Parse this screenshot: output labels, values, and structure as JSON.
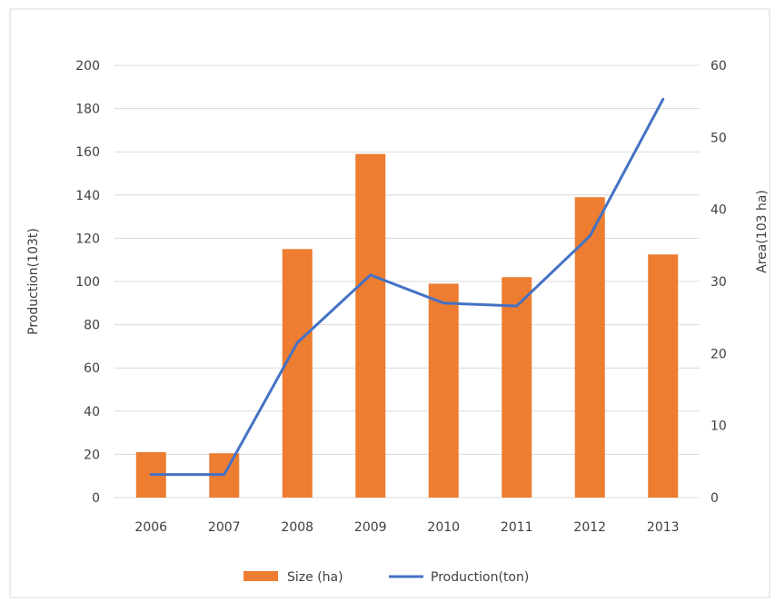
{
  "chart_data": {
    "type": "bar",
    "categories": [
      "2006",
      "2007",
      "2008",
      "2009",
      "2010",
      "2011",
      "2012",
      "2013"
    ],
    "series": [
      {
        "name": "Size (ha)",
        "type": "bar",
        "axis": "left",
        "color": "#ED7D31",
        "values": [
          21,
          20.5,
          115,
          159,
          99,
          102,
          139,
          112.5
        ]
      },
      {
        "name": "Production(ton)",
        "type": "line",
        "axis": "right",
        "color": "#4472C4",
        "values": [
          3.2,
          3.2,
          21.5,
          30.9,
          27,
          26.6,
          36.3,
          55.3
        ]
      }
    ],
    "ylabel": "Production(103t)",
    "ylabel_right": "Area(103 ha)",
    "ylim": [
      0,
      200
    ],
    "ylim_right": [
      0,
      60
    ],
    "yticks": [
      "0",
      "20",
      "40",
      "60",
      "80",
      "100",
      "120",
      "140",
      "160",
      "180",
      "200"
    ],
    "yticks_right": [
      "0",
      "10",
      "20",
      "30",
      "40",
      "50",
      "60"
    ],
    "grid": true,
    "legend_position": "bottom"
  },
  "colors": {
    "grid": "#D9D9D9",
    "text": "#404040",
    "frame": "#D9D9D9"
  }
}
